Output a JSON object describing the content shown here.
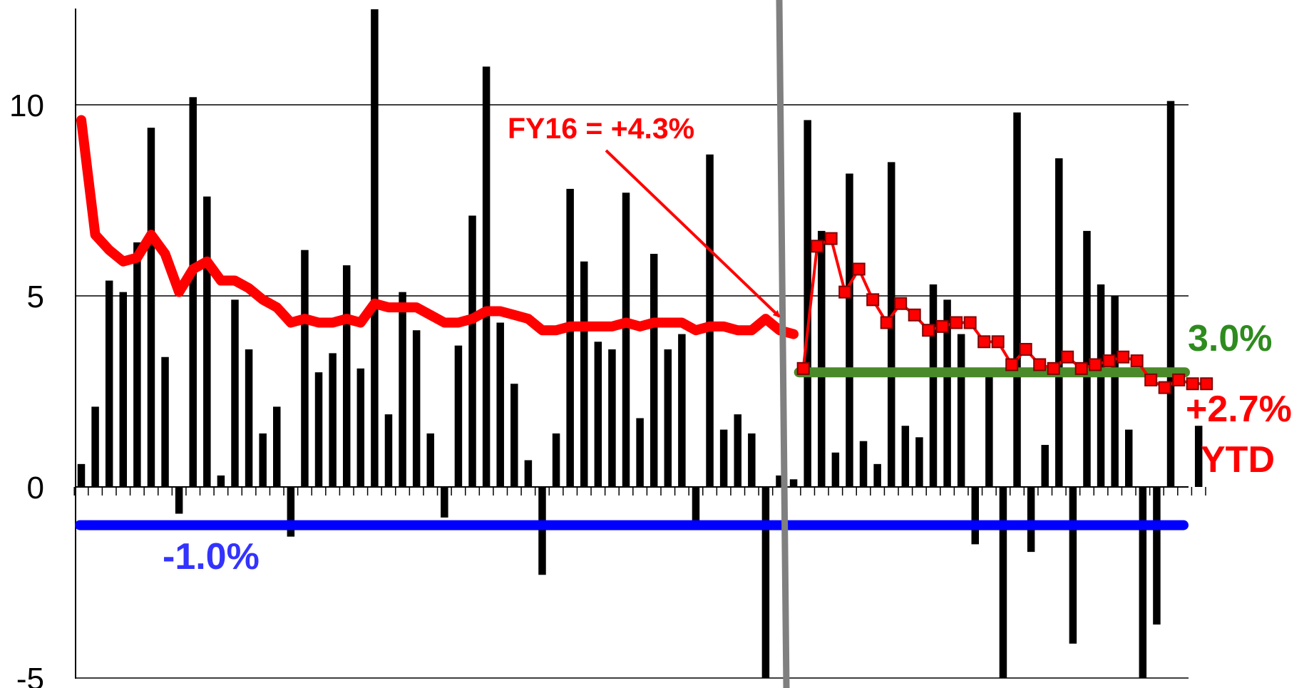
{
  "chart_data": {
    "type": "bar",
    "title": "",
    "xlabel": "",
    "ylabel": "",
    "ylim": [
      -5,
      12.5
    ],
    "yticks": [
      10,
      5,
      0,
      -5
    ],
    "grid": "horizontal",
    "colors": {
      "bars": "#000000",
      "cumulative": "#ff0000",
      "target": "#4a8a2a",
      "floor": "#0000ff",
      "divider": "#808080",
      "annotation_fy16": "#ff0000",
      "annotation_target": "#2e8b1e",
      "annotation_floor": "#3333ff",
      "annotation_ytd": "#ff0000"
    },
    "bar_values": [
      0.6,
      2.1,
      5.4,
      5.1,
      6.4,
      9.4,
      3.4,
      -0.7,
      10.2,
      7.6,
      0.3,
      4.9,
      3.6,
      1.4,
      2.1,
      -1.3,
      6.2,
      3.0,
      3.5,
      5.8,
      3.1,
      12.5,
      1.9,
      5.1,
      4.1,
      1.4,
      -0.8,
      3.7,
      7.1,
      11.0,
      4.3,
      2.7,
      0.7,
      -2.3,
      1.4,
      7.8,
      5.9,
      3.8,
      3.6,
      7.7,
      1.8,
      6.1,
      3.6,
      4.0,
      -0.9,
      8.7,
      1.5,
      1.9,
      1.4,
      -5.0,
      0.3,
      0.2,
      9.6,
      6.7,
      0.9,
      8.2,
      1.2,
      0.6,
      8.5,
      1.6,
      1.3,
      5.3,
      4.9,
      4.0,
      -1.5,
      3.1,
      -5.0,
      9.8,
      -1.7,
      1.1,
      8.6,
      -4.1,
      6.7,
      5.3,
      5.0,
      1.5,
      -5.0,
      -3.6,
      10.1,
      0.0,
      1.6
    ],
    "series": [
      {
        "values": [
          9.6,
          6.6,
          6.2,
          5.9,
          6.0,
          6.6,
          6.1,
          5.1,
          5.7,
          5.9,
          5.4,
          5.4,
          5.2,
          4.9,
          4.7,
          4.3,
          4.4,
          4.3,
          4.3,
          4.4,
          4.3,
          4.8,
          4.7,
          4.7,
          4.7,
          4.5,
          4.3,
          4.3,
          4.4,
          4.6,
          4.6,
          4.5,
          4.4,
          4.1,
          4.1,
          4.2,
          4.2,
          4.2,
          4.2,
          4.3,
          4.2,
          4.3,
          4.3,
          4.3,
          4.1,
          4.2,
          4.2,
          4.1,
          4.1,
          4.4,
          4.1,
          4.0
        ]
      },
      {
        "values": [
          3.1,
          6.3,
          6.5,
          5.1,
          5.7,
          4.9,
          4.3,
          4.8,
          4.5,
          4.1,
          4.2,
          4.3,
          4.3,
          3.8,
          3.8,
          3.2,
          3.6,
          3.2,
          3.1,
          3.4,
          3.1,
          3.2,
          3.3,
          3.4,
          3.3,
          2.8,
          2.6,
          2.8,
          2.7,
          2.7
        ]
      }
    ],
    "reference_lines": [
      {
        "value": 3.0
      },
      {
        "value": -1.0
      }
    ],
    "annotations": {
      "fy16": "FY16 = +4.3%",
      "target": "3.0%",
      "floor": "-1.0%",
      "ytd_value": "+2.7%",
      "ytd_label": "YTD"
    }
  }
}
